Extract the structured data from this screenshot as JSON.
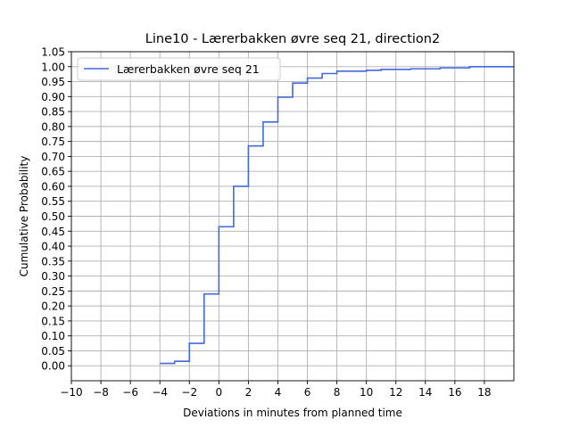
{
  "chart_data": {
    "type": "line",
    "step": true,
    "title": "Line10 - Lærerbakken øvre seq 21, direction2",
    "xlabel": "Deviations in minutes from planned time",
    "ylabel": "Cumulative Probability",
    "xlim": [
      -10,
      20
    ],
    "ylim": [
      -0.05,
      1.05
    ],
    "xticks": [
      -10,
      -8,
      -6,
      -4,
      -2,
      0,
      2,
      4,
      6,
      8,
      10,
      12,
      14,
      16,
      18
    ],
    "xtick_labels": [
      "−10",
      "−8",
      "−6",
      "−4",
      "−2",
      "0",
      "2",
      "4",
      "6",
      "8",
      "10",
      "12",
      "14",
      "16",
      "18"
    ],
    "yticks": [
      0.0,
      0.05,
      0.1,
      0.15,
      0.2,
      0.25,
      0.3,
      0.35,
      0.4,
      0.45,
      0.5,
      0.55,
      0.6,
      0.65,
      0.7,
      0.75,
      0.8,
      0.85,
      0.9,
      0.95,
      1.0,
      1.05
    ],
    "ytick_labels": [
      "0.00",
      "0.05",
      "0.10",
      "0.15",
      "0.20",
      "0.25",
      "0.30",
      "0.35",
      "0.40",
      "0.45",
      "0.50",
      "0.55",
      "0.60",
      "0.65",
      "0.70",
      "0.75",
      "0.80",
      "0.85",
      "0.90",
      "0.95",
      "1.00",
      "1.05"
    ],
    "grid": true,
    "legend_position": "upper-left",
    "series": [
      {
        "name": "Lærerbakken øvre seq 21",
        "color": "#4169e1",
        "x": [
          -4,
          -3,
          -2,
          -1,
          0,
          1,
          2,
          3,
          4,
          5,
          6,
          7,
          8,
          10,
          11,
          13,
          15,
          17,
          20
        ],
        "y": [
          0.008,
          0.015,
          0.075,
          0.24,
          0.465,
          0.6,
          0.735,
          0.815,
          0.898,
          0.945,
          0.962,
          0.977,
          0.985,
          0.988,
          0.991,
          0.993,
          0.996,
          1.0,
          1.0
        ]
      }
    ]
  }
}
